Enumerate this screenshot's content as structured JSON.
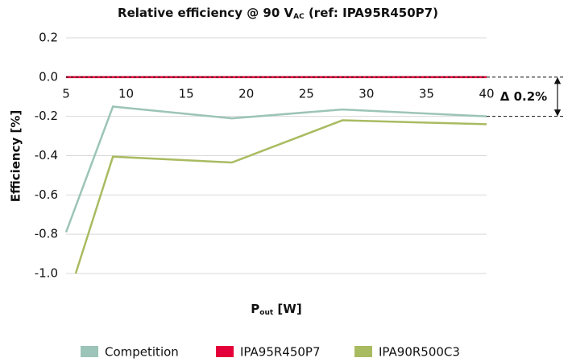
{
  "chart_data": {
    "type": "line",
    "title": [
      "Relative efficiency @ 90 V",
      "AC",
      " (ref: IPA95R450P7)"
    ],
    "x_label": [
      "P",
      "out",
      " [W]"
    ],
    "y_label": "Efficiency [%]",
    "xlim": [
      5,
      40
    ],
    "xticks": [
      5,
      10,
      15,
      20,
      25,
      30,
      35,
      40
    ],
    "ylim": [
      -1.0,
      0.2
    ],
    "yticks": [
      {
        "value": 0.2,
        "label": "0.2"
      },
      {
        "value": 0.0,
        "label": "0.0"
      },
      {
        "value": -0.2,
        "label": "-0.2"
      },
      {
        "value": -0.4,
        "label": "-0.4"
      },
      {
        "value": -0.6,
        "label": "-0.6"
      },
      {
        "value": -0.8,
        "label": "-0.8"
      },
      {
        "value": -1.0,
        "label": "-1.0"
      }
    ],
    "grid": true,
    "series": [
      {
        "name": "Competition",
        "color": "#9cc4b8",
        "x": [
          5,
          8.9,
          18.8,
          28,
          40
        ],
        "values": [
          -0.79,
          -0.15,
          -0.21,
          -0.165,
          -0.2
        ]
      },
      {
        "name": "IPA95R450P7",
        "color": "#e4003a",
        "x": [
          5,
          8.9,
          18.8,
          28,
          40
        ],
        "values": [
          0,
          0,
          0,
          0,
          0
        ]
      },
      {
        "name": "IPA90R500C3",
        "color": "#a9bb61",
        "x": [
          5.8,
          8.9,
          18.8,
          28,
          40
        ],
        "values": [
          -1.0,
          -0.405,
          -0.435,
          -0.22,
          -0.24
        ]
      }
    ],
    "annotation": {
      "text": "Δ 0.2%",
      "range": [
        0,
        -0.2
      ]
    }
  }
}
